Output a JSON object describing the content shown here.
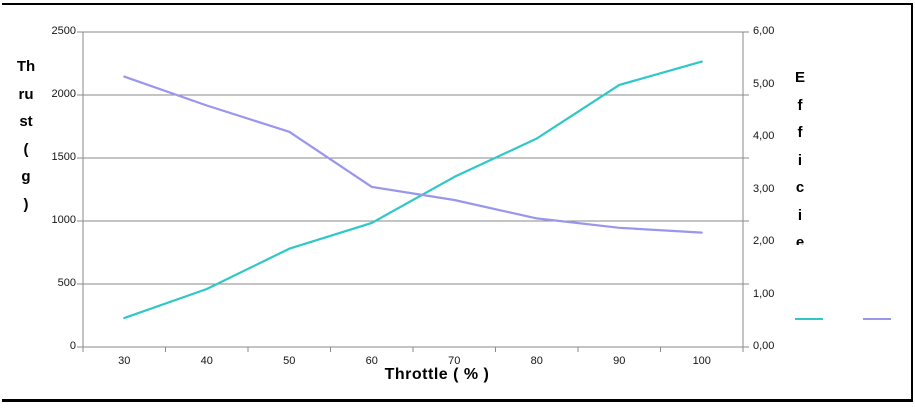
{
  "chart_data": {
    "type": "line",
    "title": "",
    "categories": [
      30,
      40,
      50,
      60,
      70,
      80,
      90,
      100
    ],
    "x_axis": {
      "title": "Throttle ( % )",
      "tick_labels": [
        "30",
        "40",
        "50",
        "60",
        "70",
        "80",
        "90",
        "100"
      ]
    },
    "y_axis_left": {
      "title": "Thrust ( g )",
      "title_lines": [
        "Th",
        "ru",
        "st",
        "(",
        "g",
        ")"
      ],
      "range": [
        0,
        2500
      ],
      "tick_step": 500,
      "tick_labels": [
        "0",
        "500",
        "1000",
        "1500",
        "2000",
        "2500"
      ]
    },
    "y_axis_right": {
      "title_visible": "Efficie",
      "title_letters": [
        "E",
        "f",
        "f",
        "i",
        "c",
        "i",
        "e"
      ],
      "range": [
        0,
        6
      ],
      "tick_step": 1,
      "tick_labels": [
        "0,00",
        "1,00",
        "2,00",
        "3,00",
        "4,00",
        "5,00",
        "6,00"
      ]
    },
    "series": [
      {
        "name": "Thrust",
        "axis": "left",
        "color": "#2fc7c7",
        "values": [
          230,
          460,
          780,
          985,
          1350,
          1655,
          2080,
          2265
        ]
      },
      {
        "name": "Efficiency",
        "axis": "right",
        "color": "#9897ec",
        "values": [
          5.15,
          4.6,
          4.1,
          3.05,
          2.8,
          2.45,
          2.27,
          2.18
        ]
      }
    ],
    "grid": "horizontal",
    "legend_position": "bottom-right",
    "legend_labels_visible": false
  },
  "colors": {
    "gridline": "#8a8a8a",
    "axis_line": "#8a8a8a",
    "tick_text": "#141414",
    "page_border": "#000000",
    "background": "#ffffff"
  }
}
